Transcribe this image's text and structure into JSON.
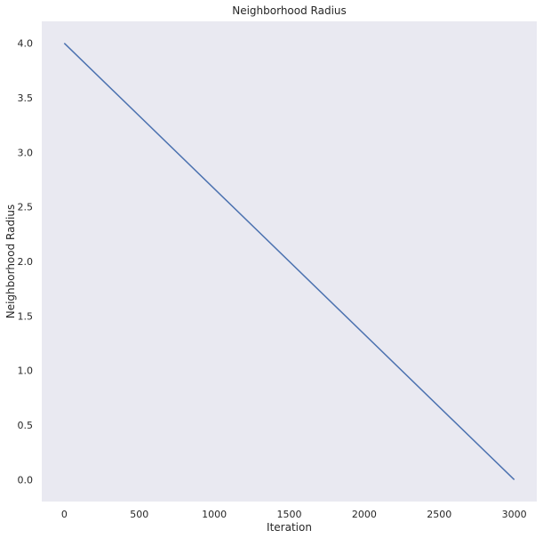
{
  "chart_data": {
    "type": "line",
    "title": "Neighborhood Radius",
    "xlabel": "Iteration",
    "ylabel": "Neighborhood Radius",
    "xlim": [
      -150,
      3150
    ],
    "ylim": [
      -0.2,
      4.2
    ],
    "xticks": [
      0,
      500,
      1000,
      1500,
      2000,
      2500,
      3000
    ],
    "yticks": [
      0.0,
      0.5,
      1.0,
      1.5,
      2.0,
      2.5,
      3.0,
      3.5,
      4.0
    ],
    "xtick_labels": [
      "0",
      "500",
      "1000",
      "1500",
      "2000",
      "2500",
      "3000"
    ],
    "ytick_labels": [
      "0.0",
      "0.5",
      "1.0",
      "1.5",
      "2.0",
      "2.5",
      "3.0",
      "3.5",
      "4.0"
    ],
    "grid": false,
    "background": "#e9e9f1",
    "series": [
      {
        "color": "#4c72b0",
        "x": [
          0,
          3000
        ],
        "y": [
          4.0,
          0.0
        ]
      }
    ]
  }
}
